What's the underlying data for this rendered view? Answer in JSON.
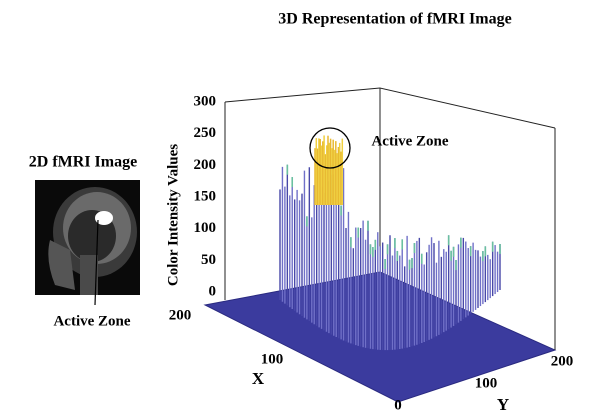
{
  "title": "3D Representation of fMRI Image",
  "inset": {
    "title": "2D fMRI Image",
    "annotation": "Active Zone"
  },
  "plot": {
    "annotation": "Active Zone",
    "z_axis": {
      "label": "Color Intensity Values",
      "ticks": [
        0,
        50,
        100,
        150,
        200,
        250,
        300
      ]
    },
    "x_axis": {
      "label": "X",
      "ticks": [
        200,
        100
      ]
    },
    "y_axis": {
      "label": "Y",
      "ticks": [
        0,
        100,
        200
      ]
    }
  }
}
